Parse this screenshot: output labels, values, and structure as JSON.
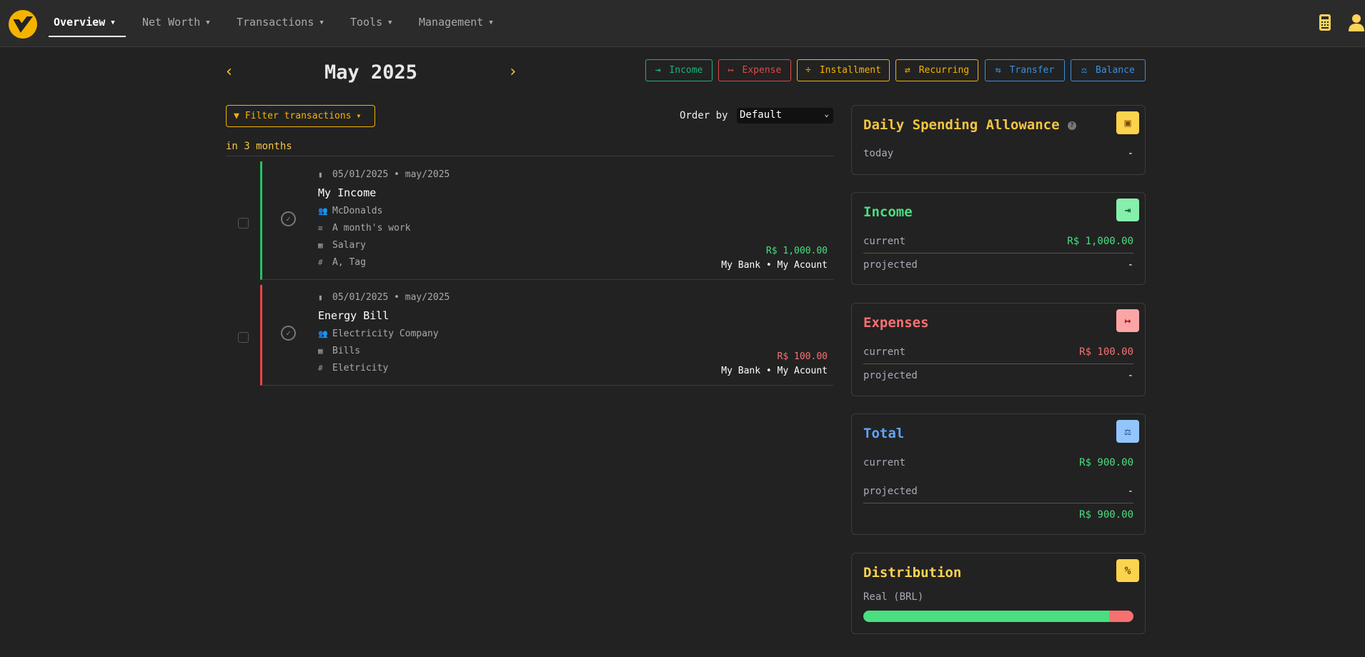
{
  "nav": {
    "items": [
      {
        "label": "Overview",
        "active": true
      },
      {
        "label": "Net Worth"
      },
      {
        "label": "Transactions"
      },
      {
        "label": "Tools"
      },
      {
        "label": "Management"
      }
    ],
    "right_icons": [
      "calculator-icon",
      "user-icon"
    ]
  },
  "header": {
    "month": "May 2025",
    "actions": [
      {
        "label": "Income",
        "icon": "income-icon",
        "color": "#1db37a"
      },
      {
        "label": "Expense",
        "icon": "expense-icon",
        "color": "#e04848"
      },
      {
        "label": "Installment",
        "icon": "divide-icon",
        "color": "#f5b300"
      },
      {
        "label": "Recurring",
        "icon": "repeat-icon",
        "color": "#f5b300"
      },
      {
        "label": "Transfer",
        "icon": "transfer-icon",
        "color": "#3b8fe0"
      },
      {
        "label": "Balance",
        "icon": "scale-icon",
        "color": "#3b8fe0"
      }
    ]
  },
  "filter": {
    "label": "Filter transactions",
    "order_label": "Order by",
    "order_value": "Default"
  },
  "group_label": "in 3 months",
  "transactions": [
    {
      "date": "05/01/2025 • may/2025",
      "title": "My Income",
      "payee": "McDonalds",
      "description": "A month's work",
      "category": "Salary",
      "tags": "A, Tag",
      "amount": "R$ 1,000.00",
      "account": "My Bank • My Acount",
      "type": "income",
      "color": "#22c55e"
    },
    {
      "date": "05/01/2025 • may/2025",
      "title": "Energy Bill",
      "payee": "Electricity Company",
      "category": "Bills",
      "tags": "Eletricity",
      "amount": "R$ 100.00",
      "account": "My Bank • My Acount",
      "type": "expense",
      "color": "#ef4444"
    }
  ],
  "cards": {
    "daily": {
      "title": "Daily Spending Allowance",
      "today_label": "today",
      "today_value": "-"
    },
    "income": {
      "title": "Income",
      "current_label": "current",
      "current_value": "R$ 1,000.00",
      "projected_label": "projected",
      "projected_value": "-"
    },
    "expenses": {
      "title": "Expenses",
      "current_label": "current",
      "current_value": "R$ 100.00",
      "projected_label": "projected",
      "projected_value": "-"
    },
    "total": {
      "title": "Total",
      "current_label": "current",
      "current_value": "R$ 900.00",
      "projected_label": "projected",
      "projected_value": "-",
      "sum_value": "R$ 900.00"
    },
    "distribution": {
      "title": "Distribution",
      "currency_label": "Real (BRL)",
      "income_fraction": 0.909,
      "expense_fraction": 0.091
    }
  },
  "colors": {
    "accent": "#f5b300",
    "income": "#4ade80",
    "expense": "#f87171",
    "total": "#60a5fa"
  }
}
